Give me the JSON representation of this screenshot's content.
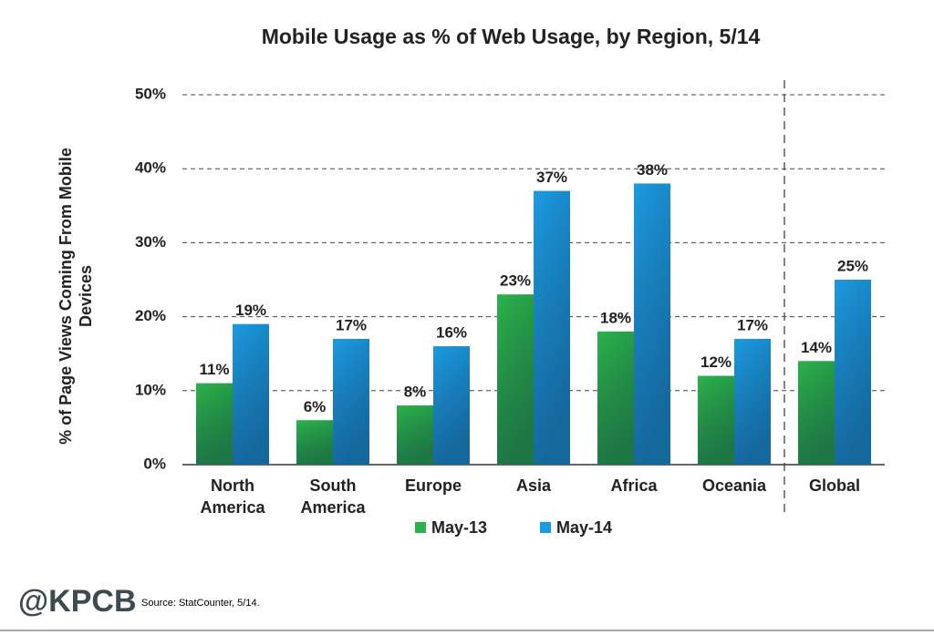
{
  "chart_data": {
    "type": "bar",
    "title": "Mobile Usage as % of Web Usage, by Region, 5/14",
    "y_label": "% of Page Views Coming From Mobile Devices",
    "categories": [
      "North America",
      "South America",
      "Europe",
      "Asia",
      "Africa",
      "Oceania",
      "Global"
    ],
    "series": [
      {
        "name": "May-13",
        "color": "#2bb34a",
        "values": [
          11,
          6,
          8,
          23,
          18,
          12,
          14
        ],
        "value_labels": [
          "11%",
          "6%",
          "8%",
          "23%",
          "18%",
          "12%",
          "14%"
        ]
      },
      {
        "name": "May-14",
        "color": "#1c9be0",
        "values": [
          19,
          17,
          16,
          37,
          38,
          17,
          25
        ],
        "value_labels": [
          "19%",
          "17%",
          "16%",
          "37%",
          "38%",
          "17%",
          "25%"
        ]
      }
    ],
    "ylim": [
      0,
      50
    ],
    "yticks": [
      {
        "value": 0,
        "label": "0%"
      },
      {
        "value": 10,
        "label": "10%"
      },
      {
        "value": 20,
        "label": "20%"
      },
      {
        "value": 30,
        "label": "30%"
      },
      {
        "value": 40,
        "label": "40%"
      },
      {
        "value": 50,
        "label": "50%"
      }
    ],
    "grid": true
  },
  "footer": {
    "logo": "@KPCB",
    "source": "Source: StatCounter, 5/14."
  }
}
